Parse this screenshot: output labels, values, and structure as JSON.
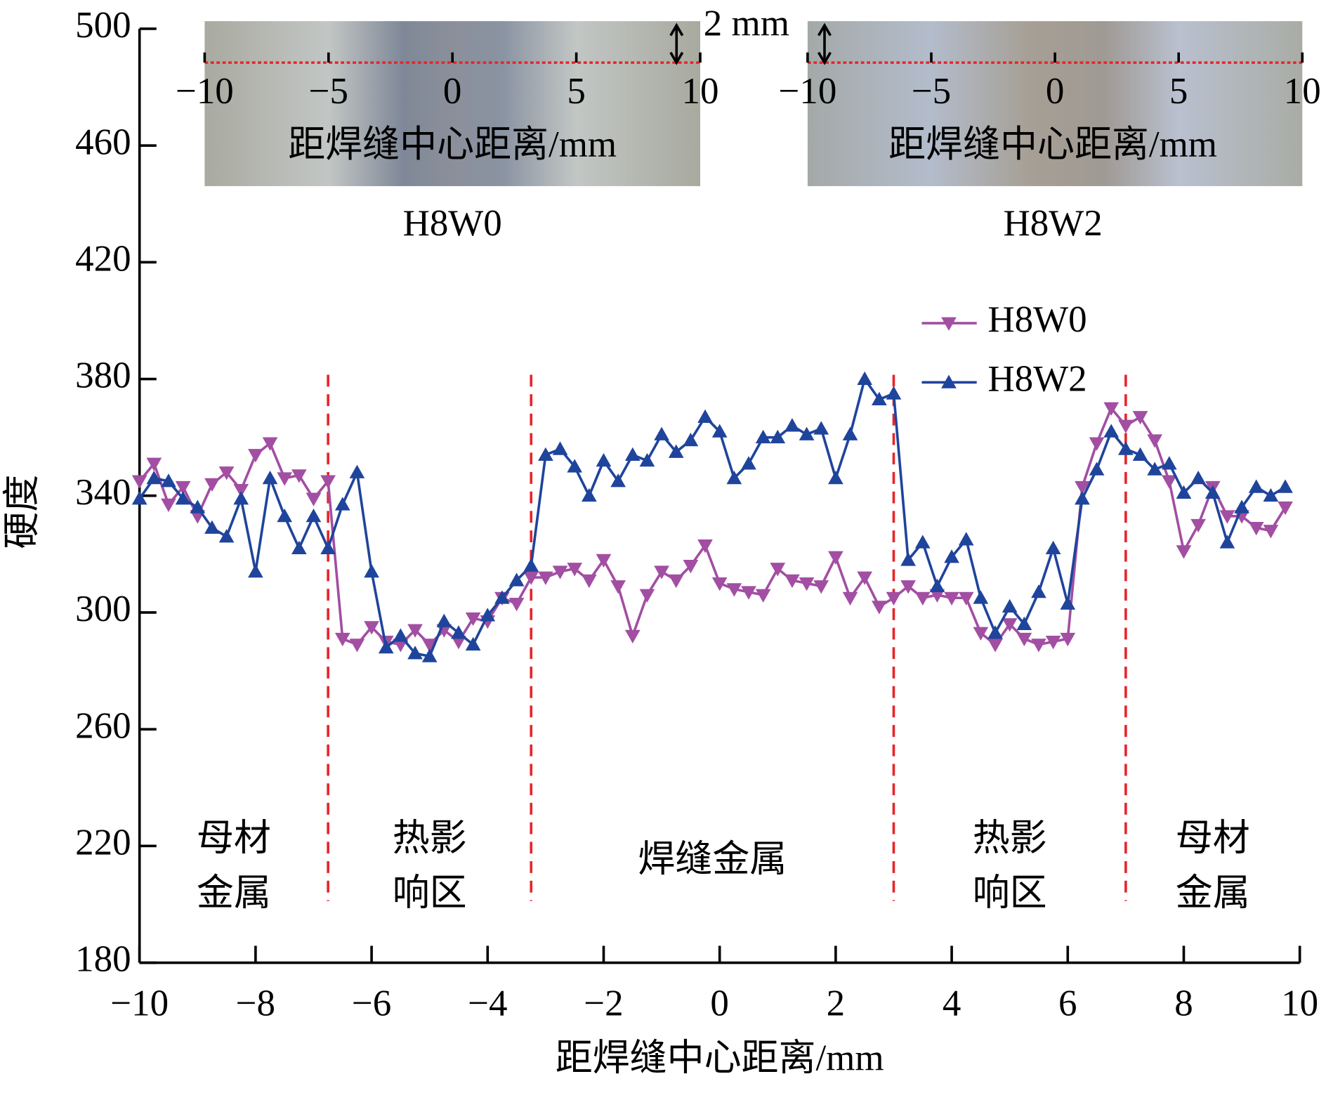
{
  "chart_data": {
    "type": "line",
    "xlabel": "距焊缝中心距离/mm",
    "ylabel": "硬度",
    "xlim": [
      -10,
      10
    ],
    "xticks": [
      {
        "value": -10,
        "label": "−10"
      },
      {
        "value": -8,
        "label": "−8"
      },
      {
        "value": -6,
        "label": "−6"
      },
      {
        "value": -4,
        "label": "−4"
      },
      {
        "value": -2,
        "label": "−2"
      },
      0,
      2,
      4,
      6,
      8,
      10
    ],
    "ylim": [
      180,
      500
    ],
    "yticks": [
      180,
      220,
      260,
      300,
      340,
      380,
      420,
      460,
      500
    ],
    "legend": "upper right",
    "x": [
      -10,
      -9.75,
      -9.5,
      -9.25,
      -9,
      -8.75,
      -8.5,
      -8.25,
      -8,
      -7.75,
      -7.5,
      -7.25,
      -7,
      -6.75,
      -6.5,
      -6.25,
      -6,
      -5.75,
      -5.5,
      -5.25,
      -5,
      -4.75,
      -4.5,
      -4.25,
      -4,
      -3.75,
      -3.5,
      -3.25,
      -3,
      -2.75,
      -2.5,
      -2.25,
      -2,
      -1.75,
      -1.5,
      -1.25,
      -1,
      -0.75,
      -0.5,
      -0.25,
      0,
      0.25,
      0.5,
      0.75,
      1,
      1.25,
      1.5,
      1.75,
      2,
      2.25,
      2.5,
      2.75,
      3,
      3.25,
      3.5,
      3.75,
      4,
      4.25,
      4.5,
      4.75,
      5,
      5.25,
      5.5,
      5.75,
      6,
      6.25,
      6.5,
      6.75,
      7,
      7.25,
      7.5,
      7.75,
      8,
      8.25,
      8.5,
      8.75,
      9,
      9.25,
      9.5,
      9.75
    ],
    "series": [
      {
        "name": "H8W0",
        "color": "#a24ea2",
        "marker": "down",
        "values": [
          345,
          351,
          337,
          343,
          333,
          344,
          348,
          342,
          354,
          358,
          346,
          347,
          339,
          345,
          291,
          289,
          295,
          290,
          289,
          294,
          289,
          294,
          290,
          298,
          297,
          305,
          303,
          312,
          312,
          314,
          315,
          311,
          318,
          309,
          292,
          306,
          314,
          311,
          316,
          323,
          310,
          308,
          307,
          306,
          315,
          311,
          310,
          309,
          319,
          305,
          312,
          302,
          305,
          309,
          305,
          306,
          305,
          305,
          293,
          289,
          296,
          291,
          289,
          290,
          291,
          343,
          358,
          370,
          364,
          367,
          359,
          345,
          321,
          330,
          343,
          333,
          333,
          329,
          328,
          336
        ]
      },
      {
        "name": "H8W2",
        "color": "#1f449c",
        "marker": "up",
        "values": [
          339,
          346,
          345,
          339,
          336,
          329,
          326,
          339,
          314,
          346,
          333,
          322,
          333,
          322,
          337,
          348,
          314,
          288,
          292,
          286,
          285,
          297,
          293,
          289,
          299,
          305,
          311,
          316,
          354,
          356,
          350,
          340,
          352,
          345,
          354,
          352,
          361,
          355,
          359,
          367,
          362,
          346,
          351,
          360,
          360,
          364,
          361,
          363,
          346,
          361,
          380,
          373,
          375,
          318,
          324,
          309,
          319,
          325,
          305,
          293,
          302,
          296,
          307,
          322,
          303,
          339,
          349,
          362,
          356,
          354,
          349,
          351,
          341,
          346,
          341,
          324,
          336,
          343,
          340,
          343
        ]
      }
    ],
    "zone_boundaries": [
      -6.75,
      -3.25,
      3,
      7
    ],
    "zone_color": "#e8242a",
    "zones": [
      [
        "母材",
        "金属"
      ],
      [
        "热影",
        "响区"
      ],
      [
        "焊缝金属"
      ],
      [
        "热影",
        "响区"
      ],
      [
        "母材",
        "金属"
      ]
    ],
    "insets": [
      {
        "title": "H8W0",
        "xlabel": "距焊缝中心距离/mm",
        "xlim": [
          -10,
          10
        ],
        "xticks": [
          {
            "value": -10,
            "label": "−10"
          },
          {
            "value": -5,
            "label": "−5"
          },
          0,
          5,
          10
        ],
        "scale": "2 mm"
      },
      {
        "title": "H8W2",
        "xlabel": "距焊缝中心距离/mm",
        "xlim": [
          -10,
          10
        ],
        "xticks": [
          {
            "value": -10,
            "label": "−10"
          },
          {
            "value": -5,
            "label": "−5"
          },
          0,
          5,
          10
        ]
      }
    ]
  }
}
